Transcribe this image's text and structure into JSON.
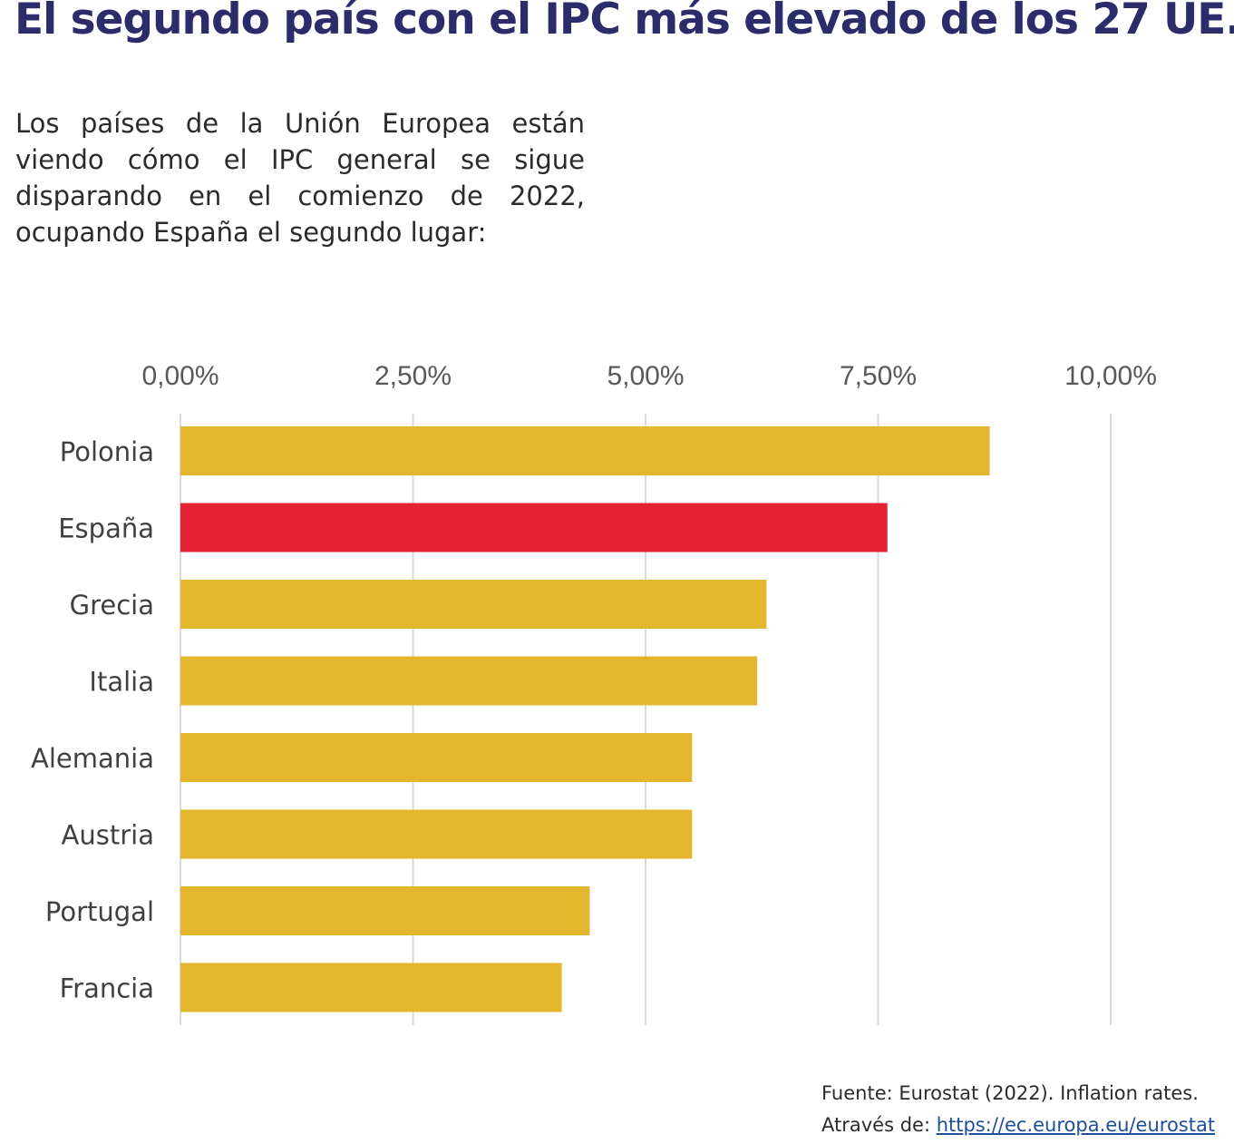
{
  "headline": "El segundo país con el IPC más elevado de los 27 UE.",
  "intro": "Los países de la Unión Europea están viendo cómo el IPC general se sigue disparando en el comienzo de 2022, ocupando España el segundo lugar:",
  "source": {
    "line1": "Fuente:  Eurostat (2022). Inflation rates.",
    "line2_prefix": "Através de: ",
    "link_text": "https://ec.europa.eu/eurostat"
  },
  "colors": {
    "default_bar": "#e3b62e",
    "highlight_bar": "#e32232",
    "grid": "#d9d9d9",
    "headline": "#2d2c6b"
  },
  "chart_data": {
    "type": "bar",
    "orientation": "horizontal",
    "categories": [
      "Polonia",
      "España",
      "Grecia",
      "Italia",
      "Alemania",
      "Austria",
      "Portugal",
      "Francia"
    ],
    "values": [
      8.7,
      7.6,
      6.3,
      6.2,
      5.5,
      5.5,
      4.4,
      4.1
    ],
    "highlight": "España",
    "x_ticks": [
      "0,00%",
      "2,50%",
      "5,00%",
      "7,50%",
      "10,00%"
    ],
    "xlim": [
      0,
      10
    ],
    "x_axis_position": "top",
    "grid": true
  }
}
